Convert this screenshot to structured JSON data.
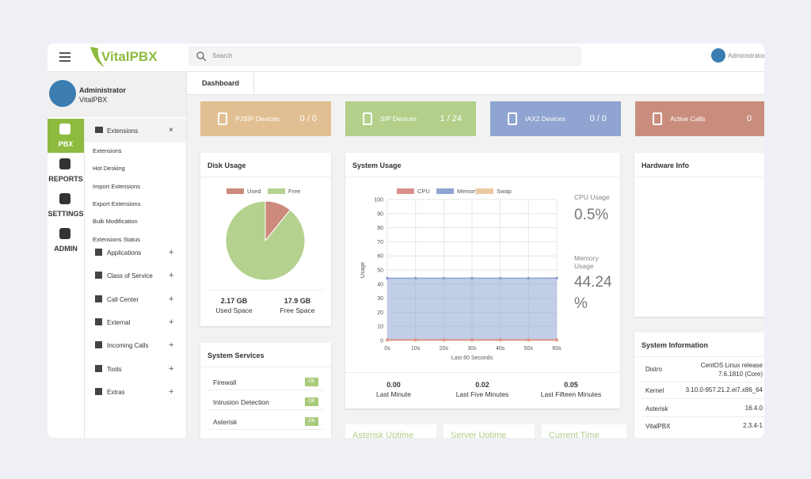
{
  "header": {
    "logo": "VitalPBX",
    "search_placeholder": "Search",
    "user": "Administrator"
  },
  "profile": {
    "name": "Administrator",
    "organization": "VitalPBX"
  },
  "rail": [
    "PBX",
    "REPORTS",
    "SETTINGS",
    "ADMIN"
  ],
  "menu": {
    "open_section": {
      "label": "Extensions",
      "close": "×",
      "items": [
        "Extensions",
        "Hot Desking",
        "Import Extensions",
        "Export Extensions",
        "Bulk Modification",
        "Extensions Status"
      ]
    },
    "sections": [
      "Applications",
      "Class of Service",
      "Call Center",
      "External",
      "Incoming Calls",
      "Tools",
      "Extras"
    ],
    "expand": "+"
  },
  "tab": "Dashboard",
  "cards": [
    {
      "label": "PJSIP Devices",
      "value": "0 / 0",
      "color": "#e2bf92"
    },
    {
      "label": "SIP Devices",
      "value": "1 / 24",
      "color": "#b3cf8a"
    },
    {
      "label": "IAX2 Devices",
      "value": "0 / 0",
      "color": "#8fa4d1"
    },
    {
      "label": "Active Calls",
      "value": "0",
      "color": "#c98d7e"
    }
  ],
  "disk_usage": {
    "title": "Disk Usage",
    "chart": {
      "type": "pie",
      "categories": [
        "Used",
        "Free"
      ],
      "values": [
        2.17,
        17.9
      ],
      "value_labels": [
        "2.17 GB",
        "17.9 GB"
      ],
      "colors": [
        "#cc8a7c",
        "#b5d18e"
      ]
    },
    "captions": [
      "Used Space",
      "Free Space"
    ]
  },
  "system_usage": {
    "title": "System Usage",
    "chart": {
      "type": "line",
      "x": [
        0,
        10,
        20,
        30,
        40,
        50,
        60
      ],
      "xlim": [
        0,
        60
      ],
      "xticks": [
        {
          "value": 0,
          "label": "0s"
        },
        {
          "value": 10,
          "label": "10s"
        },
        {
          "value": 20,
          "label": "20s"
        },
        {
          "value": 30,
          "label": "30s"
        },
        {
          "value": 40,
          "label": "40s"
        },
        {
          "value": 50,
          "label": "50s"
        },
        {
          "value": 60,
          "label": "60s"
        }
      ],
      "ylim": [
        0,
        100
      ],
      "yticks": [
        0,
        10,
        20,
        30,
        40,
        50,
        60,
        70,
        80,
        90,
        100
      ],
      "y_label": "Usage",
      "x_label": "Last 60 Seconds",
      "grid": true,
      "series": [
        {
          "name": "CPU",
          "color": "#d9908a",
          "values": [
            0.5,
            0.5,
            0.5,
            0.5,
            0.5,
            0.5,
            0.5
          ]
        },
        {
          "name": "Memory",
          "color": "#8fa4d1",
          "values": [
            44.2,
            44.2,
            44.2,
            44.2,
            44.2,
            44.2,
            44.24
          ]
        },
        {
          "name": "Swap",
          "color": "#ebc9a1",
          "values": [
            0,
            0,
            0,
            0,
            0,
            0,
            0
          ]
        }
      ]
    },
    "stats": [
      {
        "label": "CPU Usage",
        "value": "0.5%"
      },
      {
        "label": "Memory Usage",
        "value": "44.24 %"
      }
    ],
    "load": [
      {
        "value": "0.00",
        "label": "Last Minute"
      },
      {
        "value": "0.02",
        "label": "Last Five Minutes"
      },
      {
        "value": "0.05",
        "label": "Last Fifteen Minutes"
      }
    ]
  },
  "hardware_info": {
    "title": "Hardware Info"
  },
  "system_information": {
    "title": "System Information",
    "rows": [
      [
        "Distro",
        "CentOS Linux release 7.6.1810 (Core)"
      ],
      [
        "Kernel",
        "3.10.0-957.21.2.el7.x86_64"
      ],
      [
        "Asterisk",
        "16.4.0"
      ],
      [
        "VitalPBX",
        "2.3.4-1"
      ]
    ]
  },
  "system_services": {
    "title": "System Services",
    "rows": [
      {
        "name": "Firewall",
        "status": "OK"
      },
      {
        "name": "Intrusion Detection",
        "status": "OK"
      },
      {
        "name": "Asterisk",
        "status": "OK"
      }
    ]
  },
  "bottom_panels": [
    "Asterisk Uptime",
    "Server Uptime",
    "Current Time"
  ]
}
